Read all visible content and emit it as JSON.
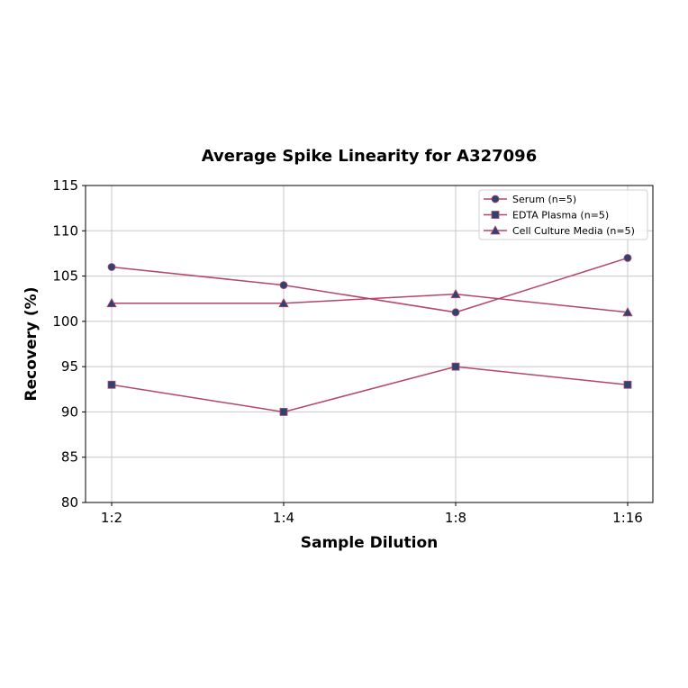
{
  "chart_data": {
    "type": "line",
    "title": "Average Spike Linearity for A327096",
    "xlabel": "Sample Dilution",
    "ylabel": "Recovery (%)",
    "categories": [
      "1:2",
      "1:4",
      "1:8",
      "1:16"
    ],
    "ylim": [
      80,
      115
    ],
    "yticks": [
      80,
      85,
      90,
      95,
      100,
      105,
      110,
      115
    ],
    "grid": true,
    "legend_position": "upper right",
    "line_color": "#b5456a",
    "marker_color": "#2e4470",
    "series": [
      {
        "name": "Serum (n=5)",
        "marker": "circle",
        "values": [
          106,
          104,
          101,
          107
        ]
      },
      {
        "name": "EDTA Plasma (n=5)",
        "marker": "square",
        "values": [
          93,
          90,
          95,
          93
        ]
      },
      {
        "name": "Cell Culture Media (n=5)",
        "marker": "triangle",
        "values": [
          102,
          102,
          103,
          101
        ]
      }
    ]
  }
}
